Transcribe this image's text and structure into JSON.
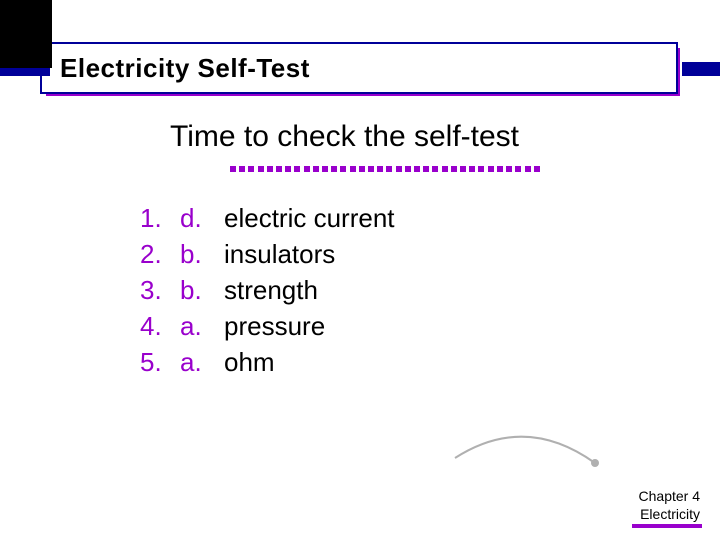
{
  "colors": {
    "purple": "#9900cc",
    "blue": "#000099",
    "black": "#000000",
    "white": "#ffffff"
  },
  "typography": {
    "title_fontsize": 26,
    "title_weight": "bold",
    "subtitle_fontsize": 30,
    "body_fontsize": 26,
    "footer_fontsize": 14,
    "font_family": "Arial"
  },
  "title": "Electricity Self-Test",
  "subtitle": "Time to check the self-test",
  "dots": {
    "count": 34,
    "color": "#9900cc",
    "size": 6
  },
  "answers": [
    {
      "num": "1.",
      "letter": "d.",
      "text": "electric current"
    },
    {
      "num": "2.",
      "letter": "b.",
      "text": "insulators"
    },
    {
      "num": "3.",
      "letter": "b.",
      "text": "strength"
    },
    {
      "num": "4.",
      "letter": "a.",
      "text": "pressure"
    },
    {
      "num": "5.",
      "letter": "a.",
      "text": "ohm"
    }
  ],
  "footer": {
    "line1": "Chapter 4",
    "line2": "Electricity"
  },
  "curve": {
    "stroke": "#b0b0b0",
    "stroke_width": 2
  }
}
